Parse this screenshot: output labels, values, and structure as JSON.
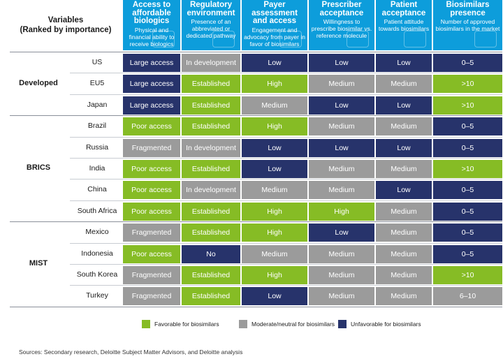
{
  "header": {
    "variables_line1": "Variables",
    "variables_line2": "(Ranked by importance)"
  },
  "columns": [
    {
      "title": "Access to affordable biologics",
      "desc": "Physical and financial ability to receive biologics"
    },
    {
      "title": "Regulatory environment",
      "desc": "Presence of an abbreviated or dedicated pathway"
    },
    {
      "title": "Payer assessment and access",
      "desc": "Engagement and advocacy from payer in favor of biosimilars"
    },
    {
      "title": "Prescriber acceptance",
      "desc": "Willingness to prescribe biosimilar vs. reference molecule"
    },
    {
      "title": "Patient acceptance",
      "desc": "Patient attitude towards biosimilars"
    },
    {
      "title": "Biosimilars presence",
      "desc": "Number of approved biosimilars in the market"
    }
  ],
  "groups": [
    {
      "name": "Developed",
      "rows": [
        {
          "country": "US",
          "cells": [
            {
              "text": "Large access",
              "color": "navy"
            },
            {
              "text": "In development",
              "color": "gray"
            },
            {
              "text": "Low",
              "color": "navy"
            },
            {
              "text": "Low",
              "color": "navy"
            },
            {
              "text": "Low",
              "color": "navy"
            },
            {
              "text": "0–5",
              "color": "navy"
            }
          ]
        },
        {
          "country": "EU5",
          "cells": [
            {
              "text": "Large access",
              "color": "navy"
            },
            {
              "text": "Established",
              "color": "green"
            },
            {
              "text": "High",
              "color": "green"
            },
            {
              "text": "Medium",
              "color": "gray"
            },
            {
              "text": "Medium",
              "color": "gray"
            },
            {
              "text": ">10",
              "color": "green"
            }
          ]
        },
        {
          "country": "Japan",
          "cells": [
            {
              "text": "Large access",
              "color": "navy"
            },
            {
              "text": "Established",
              "color": "green"
            },
            {
              "text": "Medium",
              "color": "gray"
            },
            {
              "text": "Low",
              "color": "navy"
            },
            {
              "text": "Low",
              "color": "navy"
            },
            {
              "text": ">10",
              "color": "green"
            }
          ]
        }
      ]
    },
    {
      "name": "BRICS",
      "rows": [
        {
          "country": "Brazil",
          "cells": [
            {
              "text": "Poor access",
              "color": "green"
            },
            {
              "text": "Established",
              "color": "green"
            },
            {
              "text": "High",
              "color": "green"
            },
            {
              "text": "Medium",
              "color": "gray"
            },
            {
              "text": "Medium",
              "color": "gray"
            },
            {
              "text": "0–5",
              "color": "navy"
            }
          ]
        },
        {
          "country": "Russia",
          "cells": [
            {
              "text": "Fragmented",
              "color": "gray"
            },
            {
              "text": "In development",
              "color": "gray"
            },
            {
              "text": "Low",
              "color": "navy"
            },
            {
              "text": "Low",
              "color": "navy"
            },
            {
              "text": "Low",
              "color": "navy"
            },
            {
              "text": "0–5",
              "color": "navy"
            }
          ]
        },
        {
          "country": "India",
          "cells": [
            {
              "text": "Poor access",
              "color": "green"
            },
            {
              "text": "Established",
              "color": "green"
            },
            {
              "text": "Low",
              "color": "navy"
            },
            {
              "text": "Medium",
              "color": "gray"
            },
            {
              "text": "Medium",
              "color": "gray"
            },
            {
              "text": ">10",
              "color": "green"
            }
          ]
        },
        {
          "country": "China",
          "cells": [
            {
              "text": "Poor access",
              "color": "green"
            },
            {
              "text": "In development",
              "color": "gray"
            },
            {
              "text": "Medium",
              "color": "gray"
            },
            {
              "text": "Medium",
              "color": "gray"
            },
            {
              "text": "Low",
              "color": "navy"
            },
            {
              "text": "0–5",
              "color": "navy"
            }
          ]
        },
        {
          "country": "South Africa",
          "cells": [
            {
              "text": "Poor access",
              "color": "green"
            },
            {
              "text": "Established",
              "color": "green"
            },
            {
              "text": "High",
              "color": "green"
            },
            {
              "text": "High",
              "color": "green"
            },
            {
              "text": "Medium",
              "color": "gray"
            },
            {
              "text": "0–5",
              "color": "navy"
            }
          ]
        }
      ]
    },
    {
      "name": "MIST",
      "rows": [
        {
          "country": "Mexico",
          "cells": [
            {
              "text": "Fragmented",
              "color": "gray"
            },
            {
              "text": "Established",
              "color": "green"
            },
            {
              "text": "High",
              "color": "green"
            },
            {
              "text": "Low",
              "color": "navy"
            },
            {
              "text": "Medium",
              "color": "gray"
            },
            {
              "text": "0–5",
              "color": "navy"
            }
          ]
        },
        {
          "country": "Indonesia",
          "cells": [
            {
              "text": "Poor access",
              "color": "green"
            },
            {
              "text": "No",
              "color": "navy"
            },
            {
              "text": "Medium",
              "color": "gray"
            },
            {
              "text": "Medium",
              "color": "gray"
            },
            {
              "text": "Medium",
              "color": "gray"
            },
            {
              "text": "0–5",
              "color": "navy"
            }
          ]
        },
        {
          "country": "South Korea",
          "cells": [
            {
              "text": "Fragmented",
              "color": "gray"
            },
            {
              "text": "Established",
              "color": "green"
            },
            {
              "text": "High",
              "color": "green"
            },
            {
              "text": "Medium",
              "color": "gray"
            },
            {
              "text": "Medium",
              "color": "gray"
            },
            {
              "text": ">10",
              "color": "green"
            }
          ]
        },
        {
          "country": "Turkey",
          "cells": [
            {
              "text": "Fragmented",
              "color": "gray"
            },
            {
              "text": "Established",
              "color": "green"
            },
            {
              "text": "Low",
              "color": "navy"
            },
            {
              "text": "Medium",
              "color": "gray"
            },
            {
              "text": "Medium",
              "color": "gray"
            },
            {
              "text": "6–10",
              "color": "gray"
            }
          ]
        }
      ]
    }
  ],
  "legend": [
    {
      "label": "Favorable for biosimilars",
      "color": "green"
    },
    {
      "label": "Moderate/neutral for biosimilars",
      "color": "gray"
    },
    {
      "label": "Unfavorable for biosimilars",
      "color": "navy"
    }
  ],
  "source": "Sources: Secondary research, Deloitte Subject Matter Advisors, and Deloitte analysis",
  "colors": {
    "green": "#86bc25",
    "gray": "#9b9b9b",
    "navy": "#27336b",
    "header_blue": "#0d9ddb"
  }
}
